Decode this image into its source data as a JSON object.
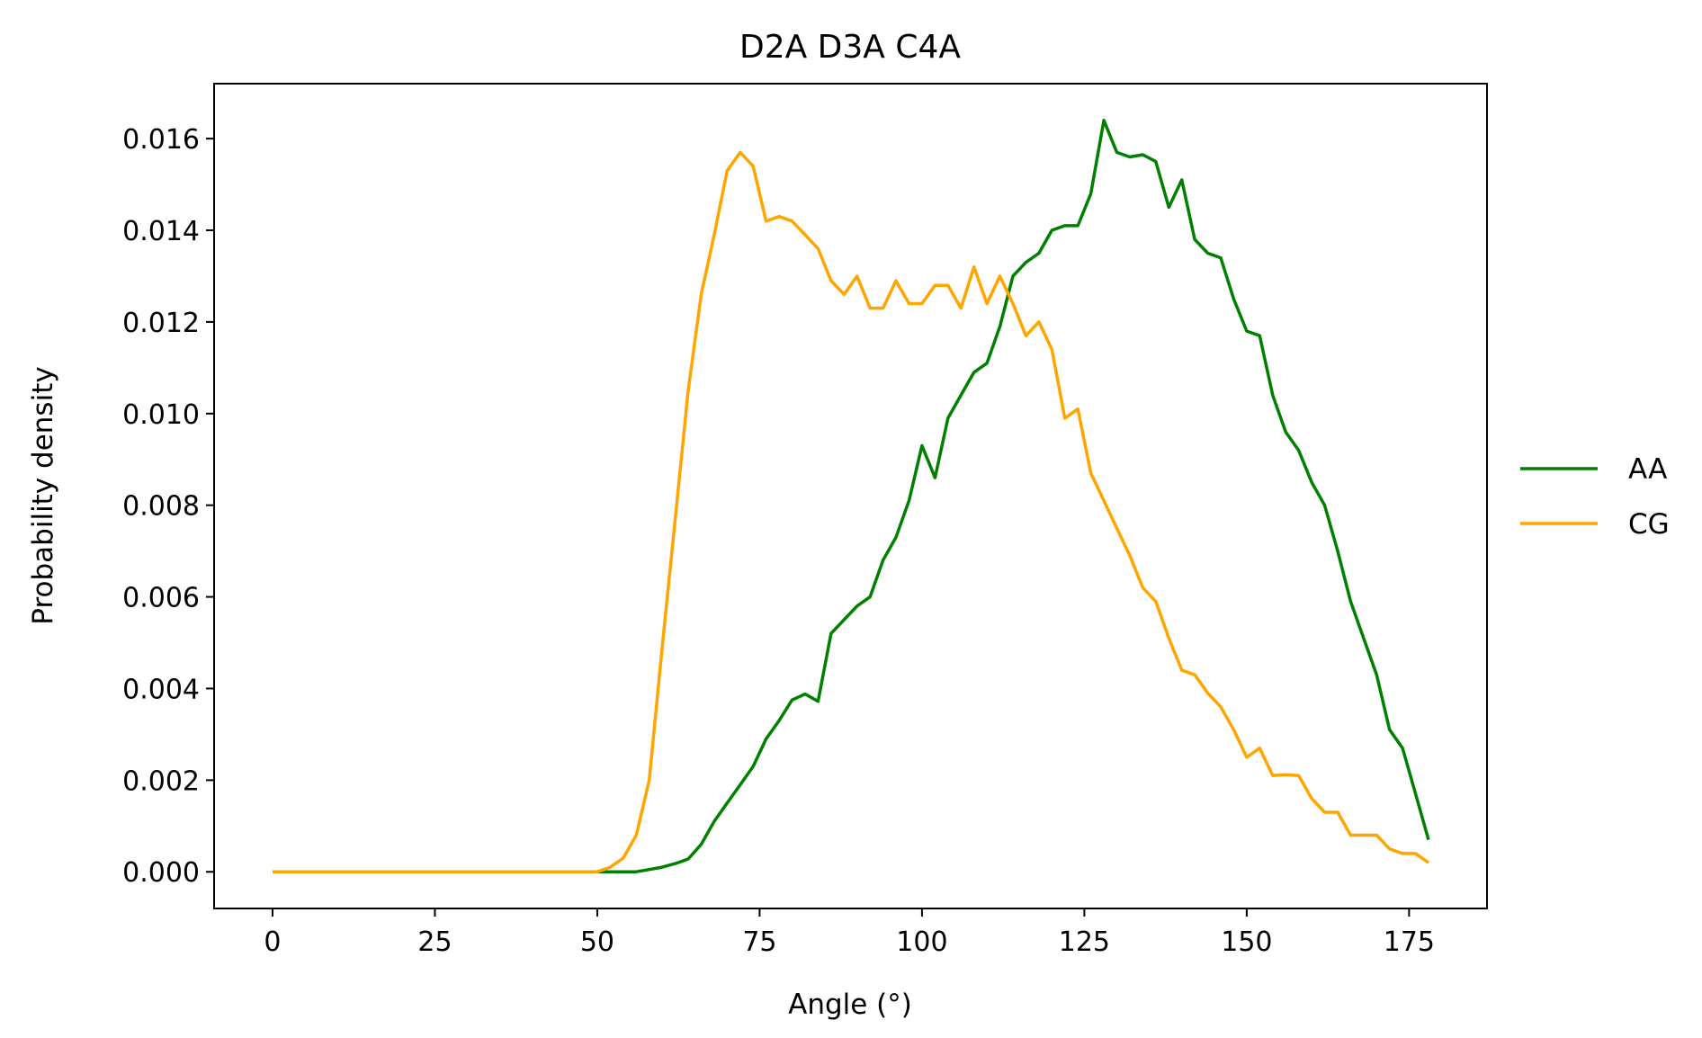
{
  "chart_data": {
    "type": "line",
    "title": "D2A D3A C4A",
    "xlabel": "Angle (°)",
    "ylabel": "Probability density",
    "xlim": [
      -9,
      187
    ],
    "ylim": [
      -0.0008,
      0.0172
    ],
    "xticks": [
      0,
      25,
      50,
      75,
      100,
      125,
      150,
      175
    ],
    "xtick_labels": [
      "0",
      "25",
      "50",
      "75",
      "100",
      "125",
      "150",
      "175"
    ],
    "yticks": [
      0,
      0.002,
      0.004,
      0.006,
      0.008,
      0.01,
      0.012,
      0.014,
      0.016
    ],
    "ytick_labels": [
      "0.000",
      "0.002",
      "0.004",
      "0.006",
      "0.008",
      "0.010",
      "0.012",
      "0.014",
      "0.016"
    ],
    "grid": false,
    "legend_position": "right, outside plot",
    "x": [
      0,
      2,
      4,
      6,
      8,
      10,
      12,
      14,
      16,
      18,
      20,
      22,
      24,
      26,
      28,
      30,
      32,
      34,
      36,
      38,
      40,
      42,
      44,
      46,
      48,
      50,
      52,
      54,
      56,
      58,
      60,
      62,
      64,
      66,
      68,
      70,
      72,
      74,
      76,
      78,
      80,
      82,
      84,
      86,
      88,
      90,
      92,
      94,
      96,
      98,
      100,
      102,
      104,
      106,
      108,
      110,
      112,
      114,
      116,
      118,
      120,
      122,
      124,
      126,
      128,
      130,
      132,
      134,
      136,
      138,
      140,
      142,
      144,
      146,
      148,
      150,
      152,
      154,
      156,
      158,
      160,
      162,
      164,
      166,
      168,
      170,
      172,
      174,
      176,
      178
    ],
    "series": [
      {
        "name": "AA",
        "color": "#008000",
        "values": [
          0,
          0,
          0,
          0,
          0,
          0,
          0,
          0,
          0,
          0,
          0,
          0,
          0,
          0,
          0,
          0,
          0,
          0,
          0,
          0,
          0,
          0,
          0,
          0,
          0,
          0,
          0,
          0,
          0,
          5e-05,
          0.0001,
          0.00018,
          0.00028,
          0.0006,
          0.0011,
          0.0015,
          0.0019,
          0.0023,
          0.0029,
          0.0033,
          0.00375,
          0.00388,
          0.00372,
          0.0052,
          0.0055,
          0.0058,
          0.006,
          0.0068,
          0.0073,
          0.0081,
          0.0093,
          0.0086,
          0.0099,
          0.0104,
          0.0109,
          0.0111,
          0.0119,
          0.013,
          0.0133,
          0.0135,
          0.014,
          0.0141,
          0.0141,
          0.0148,
          0.0164,
          0.0157,
          0.0156,
          0.01565,
          0.0155,
          0.0145,
          0.0151,
          0.0138,
          0.0135,
          0.0134,
          0.0125,
          0.0118,
          0.0117,
          0.0104,
          0.0096,
          0.0092,
          0.0085,
          0.008,
          0.007,
          0.0059,
          0.0051,
          0.0043,
          0.0031,
          0.0027,
          0.0017,
          0.0007
        ]
      },
      {
        "name": "CG",
        "color": "#ffa500",
        "values": [
          0,
          0,
          0,
          0,
          0,
          0,
          0,
          0,
          0,
          0,
          0,
          0,
          0,
          0,
          0,
          0,
          0,
          0,
          0,
          0,
          0,
          0,
          0,
          0,
          0,
          0,
          0.0001,
          0.0003,
          0.0008,
          0.002,
          0.0049,
          0.0077,
          0.0105,
          0.0126,
          0.0139,
          0.0153,
          0.0157,
          0.0154,
          0.0142,
          0.0143,
          0.0142,
          0.0139,
          0.0136,
          0.0129,
          0.0126,
          0.013,
          0.0123,
          0.0123,
          0.0129,
          0.0124,
          0.0124,
          0.0128,
          0.0128,
          0.0123,
          0.0132,
          0.0124,
          0.013,
          0.0124,
          0.0117,
          0.012,
          0.0114,
          0.0099,
          0.0101,
          0.0087,
          0.0081,
          0.0075,
          0.0069,
          0.0062,
          0.0059,
          0.0051,
          0.0044,
          0.0043,
          0.0039,
          0.0036,
          0.0031,
          0.0025,
          0.0027,
          0.0021,
          0.00212,
          0.0021,
          0.0016,
          0.0013,
          0.0013,
          0.0008,
          0.0008,
          0.0008,
          0.0005,
          0.0004,
          0.0004,
          0.0002
        ]
      }
    ]
  }
}
